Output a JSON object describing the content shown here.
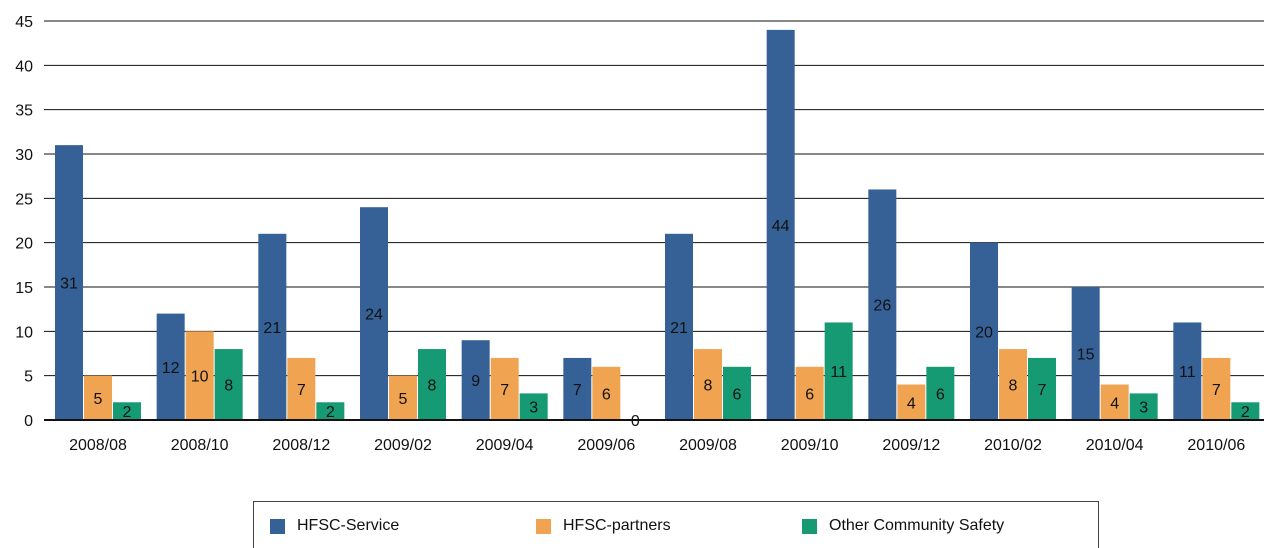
{
  "chart_data": {
    "type": "bar",
    "categories": [
      "2008/08",
      "2008/10",
      "2008/12",
      "2009/02",
      "2009/04",
      "2009/06",
      "2009/08",
      "2009/10",
      "2009/12",
      "2010/02",
      "2010/04",
      "2010/06"
    ],
    "series": [
      {
        "name": "HFSC-Service",
        "color": "#356197",
        "values": [
          31,
          12,
          21,
          24,
          9,
          7,
          21,
          44,
          26,
          20,
          15,
          11
        ]
      },
      {
        "name": "HFSC-partners",
        "color": "#f0a452",
        "values": [
          5,
          10,
          7,
          5,
          7,
          6,
          8,
          6,
          4,
          8,
          4,
          7
        ]
      },
      {
        "name": "Other Community Safety",
        "color": "#169a73",
        "values": [
          2,
          8,
          2,
          8,
          3,
          0,
          6,
          11,
          6,
          7,
          3,
          2
        ]
      }
    ],
    "y_ticks": [
      "0",
      "5",
      "10",
      "15",
      "20",
      "25",
      "30",
      "35",
      "40",
      "45"
    ],
    "ylim": [
      0,
      45
    ],
    "grid": true,
    "legend_position": "bottom"
  }
}
